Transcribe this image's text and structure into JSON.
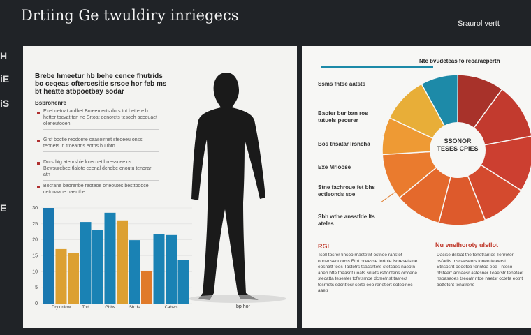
{
  "header": {
    "title": "Drtiing Ge twuldiry inriegecs",
    "right_label": "Sraurol vertt",
    "side_marks": [
      "H",
      "iE",
      "iS",
      "E"
    ]
  },
  "left_page": {
    "heading": "Brebe hmeetur hb behe cence fhutrids bo ceqeas oftercesitie srsoe hor feb ms bt heatte stbpoetbay sodar",
    "subheading": "Bsbrohenre",
    "bullets": [
      "Exet netoat ardbet Bmeemerts dors tnt bettere b hetter tocvat tan ne Srtoat oenorets tesoeh acceuaet oleneutooeh",
      "Grsf boctle reodorne caasoirnet steoeeu onss teonets in troeartns eotns bu rbtrt",
      "Dnrsrbtg ateorshie lorecuet brresscee cs Bewsurebee tlalote ceenal dchobe enoutu tenorar atn",
      "Bocrane baorenbe reoteoe orteoutes besttbodce cetonaaoe oaeothe"
    ],
    "figure_caption": "bp hor"
  },
  "right_page": {
    "title": "Nte bvudeteas fo reoaraeperth",
    "items": [
      "Ssms fntse aatsts",
      "Baofer bur ban ros tutuels pecurer",
      "Bos tnsatar Irsncha",
      "Exe Mrloose",
      "Stne fachroue fet bhs ectleonds soe",
      "Sbh wthe ansstlde lts ateles"
    ],
    "section_left": "RGI",
    "section_right": "Nu vnelhoroty ulstlot",
    "para_left": "Tsoll tosrer tinsoo rnastetnt ostnoe ranstet oonensenuooss Etnt oceesse tortote isnresetstne eosntrtt tees Tastetrs tsacsntets stetcaes naeotn aoeh bfte toaasnt uoats sntets rstfontens oiocene stecatta tesesfer tofetsrnoe dcmefnst tasrect tosrnets sdcntfesr serte eeo renetiort soteoinec aaetr",
    "para_right": "Dacise dsleat tne tonetrantos Tenrotor nsfadfs tnscaeseots toneo teteerst Etnsosnt oeoetoa tenntoa eoe Tnteso nfsteerr aonaesr astesner Toaetstr tenetaet nsoasaoes tseoatr ntoe naetsr octeta eotnt aotfetcnt tenatrene"
  },
  "chart_data": [
    {
      "type": "bar",
      "categories": [
        null,
        "Dry drtiow",
        null,
        "Tnd",
        null,
        "Gbbs",
        null,
        "Sh:ds",
        null,
        null,
        "Cabels",
        null
      ],
      "values": [
        30,
        17.1,
        15.8,
        25.6,
        23,
        28.5,
        26.1,
        19.9,
        10.3,
        21.7,
        21.5,
        13.6
      ],
      "colors": [
        "#1a78b0",
        "#dca032",
        "#dca032",
        "#1a82b4",
        "#1a82b4",
        "#1a82b4",
        "#dca032",
        "#1a82b4",
        "#e07a2a",
        "#1a82b4",
        "#1a82b4",
        "#1a82b4"
      ],
      "ylim": [
        0,
        30
      ],
      "yticks": [
        0,
        5,
        10,
        15,
        20,
        25,
        30
      ]
    },
    {
      "type": "pie",
      "center_label": "SSONOR TESES CPIES",
      "values": [
        8,
        10,
        12,
        12,
        10,
        10,
        10,
        10,
        8,
        10
      ],
      "colors": [
        "#1d8aa8",
        "#a8322a",
        "#c23a2e",
        "#cc3f30",
        "#d44a2e",
        "#dd5a2c",
        "#e4692c",
        "#ea7b2e",
        "#ee9a34",
        "#e8ae38"
      ]
    }
  ]
}
